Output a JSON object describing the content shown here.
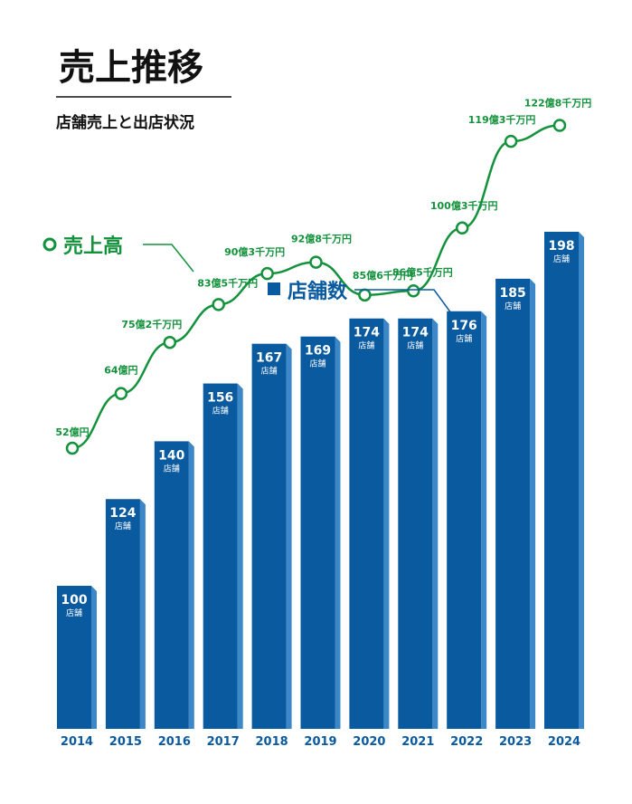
{
  "title": "売上推移",
  "subtitle": "店舗売上と出店状況",
  "colors": {
    "bar": "#0a5aa0",
    "bar_side": "#3c87c8",
    "line": "#13923c",
    "axis_text": "#0a5aa0"
  },
  "chart_data": {
    "type": "bar",
    "categories": [
      "2014",
      "2015",
      "2016",
      "2017",
      "2018",
      "2019",
      "2020",
      "2021",
      "2022",
      "2023",
      "2024"
    ],
    "series": [
      {
        "name": "店舗数",
        "type": "bar",
        "values": [
          100,
          124,
          140,
          156,
          167,
          169,
          174,
          174,
          176,
          185,
          198
        ],
        "value_labels": [
          "100",
          "124",
          "140",
          "156",
          "167",
          "169",
          "174",
          "174",
          "176",
          "185",
          "198"
        ],
        "unit_label": "店舗"
      },
      {
        "name": "売上高",
        "type": "line",
        "values": [
          52,
          64,
          75.2,
          83.5,
          90.3,
          92.8,
          85.6,
          86.5,
          100.3,
          119.3,
          122.8
        ],
        "value_labels": [
          "52億円",
          "64億円",
          "75億2千万円",
          "83億5千万円",
          "90億3千万円",
          "92億8千万円",
          "85億6千万円",
          "86億5千万円",
          "100億3千万円",
          "119億3千万円",
          "122億8千万円"
        ]
      }
    ],
    "legend": {
      "line_label": "売上高",
      "bar_label": "店舗数"
    }
  }
}
